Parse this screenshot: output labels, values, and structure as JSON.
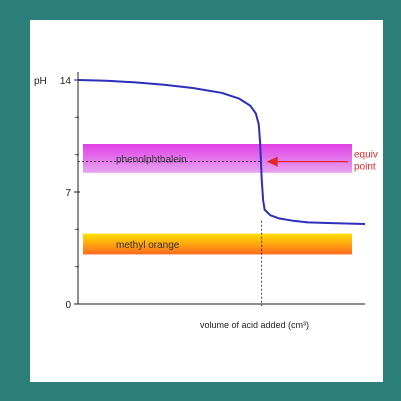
{
  "colors": {
    "frame": "#2b7f78",
    "curve": "#2c2fb8",
    "phenolphthalein_top": "#e040e6",
    "phenolphthalein_bottom": "#e6a6f0",
    "methyl_orange_top": "#ffe100",
    "methyl_orange_bottom": "#ff6a1f",
    "annotation": "#e0282a"
  },
  "chart_data": {
    "type": "line",
    "title": "",
    "xlabel": "volume of acid added (cm³)",
    "ylabel": "pH",
    "ylim": [
      0,
      14
    ],
    "yticks": [
      0,
      7,
      14
    ],
    "yminor_ticks": [
      2.33,
      4.67,
      9.33,
      11.67
    ],
    "xlim": [
      0,
      100
    ],
    "grid": false,
    "equivalence_x": 64,
    "series": [
      {
        "x": [
          0,
          10,
          20,
          30,
          40,
          50,
          56,
          60,
          62,
          63,
          63.5,
          64,
          64.5,
          65,
          67,
          70,
          75,
          80,
          90,
          100
        ],
        "y": [
          14.0,
          13.95,
          13.85,
          13.7,
          13.5,
          13.2,
          12.85,
          12.4,
          11.9,
          11.2,
          10.0,
          7.8,
          6.5,
          5.9,
          5.55,
          5.35,
          5.2,
          5.1,
          5.05,
          5.0
        ]
      }
    ],
    "bands": [
      {
        "name": "phenolphthalein",
        "ymin": 8.2,
        "ymax": 10.0
      },
      {
        "name": "methyl orange",
        "ymin": 3.1,
        "ymax": 4.4
      }
    ],
    "annotations": [
      {
        "text_lines": [
          "equiv",
          "point"
        ],
        "y": 8.9
      }
    ]
  }
}
